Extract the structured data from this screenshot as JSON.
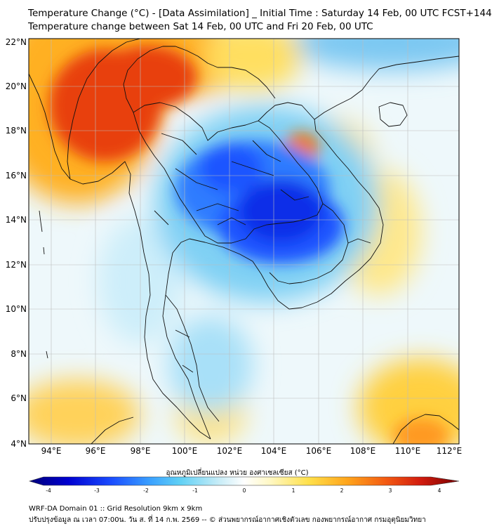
{
  "header": {
    "title_line1": "Temperature Change (°C) - [Data Assimilation] _ Initial Time : Saturday 14 Feb, 00 UTC FCST+144",
    "title_line2": "Temperature change between Sat 14 Feb, 00 UTC and Fri 20 Feb, 00 UTC"
  },
  "map": {
    "lat_labels": [
      "22°N",
      "20°N",
      "18°N",
      "16°N",
      "14°N",
      "12°N",
      "10°N",
      "8°N",
      "6°N",
      "4°N"
    ],
    "lon_labels": [
      "94°E",
      "96°E",
      "98°E",
      "100°E",
      "102°E",
      "104°E",
      "106°E",
      "108°E",
      "110°E",
      "112°E"
    ],
    "lat_range": [
      4,
      22
    ],
    "lon_range": [
      93,
      112
    ]
  },
  "colorbar": {
    "label": "อุณหภูมิเปลี่ยนแปลง หน่วย องศาเซลเซียส (°C)",
    "ticks": [
      "-4",
      "-3",
      "-2",
      "-1",
      "0",
      "1",
      "2",
      "3",
      "4"
    ],
    "min": -4,
    "max": 4,
    "colors": [
      "#00007a",
      "#0000d0",
      "#1a4cff",
      "#3aa0ff",
      "#5fd0f5",
      "#c6ecf7",
      "#ffffff",
      "#fff8c4",
      "#ffe04a",
      "#ffa51c",
      "#f35a12",
      "#d21c0e",
      "#7a0000"
    ]
  },
  "footer": {
    "line1": "WRF-DA Domain 01 :: Grid Resolution 9km x 9km",
    "line2": "ปรับปรุงข้อมูล ณ เวลา 07:00น. วัน ส. ที่ 14 ก.พ. 2569 -- © ส่วนพยากรณ์อากาศเชิงตัวเลข กองพยากรณ์อากาศ กรมอุตุนิยมวิทยา"
  }
}
